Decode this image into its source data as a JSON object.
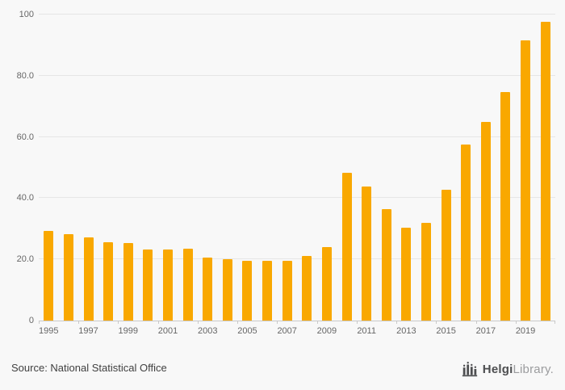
{
  "chart_data": {
    "type": "bar",
    "x": [
      1995,
      1996,
      1997,
      1998,
      1999,
      2000,
      2001,
      2002,
      2003,
      2004,
      2005,
      2006,
      2007,
      2008,
      2009,
      2010,
      2011,
      2012,
      2013,
      2014,
      2015,
      2016,
      2017,
      2018,
      2019,
      2020
    ],
    "values": [
      29.2,
      28.3,
      27.3,
      25.5,
      25.4,
      23.2,
      23.2,
      23.5,
      20.6,
      20.1,
      19.5,
      19.4,
      19.6,
      21.1,
      24.1,
      48.2,
      43.8,
      36.4,
      30.4,
      31.9,
      42.8,
      57.5,
      64.9,
      74.6,
      91.6,
      97.5
    ],
    "title": "",
    "xlabel": "",
    "ylabel": "",
    "ylim": [
      0,
      100
    ],
    "ytick_values": [
      0,
      20,
      40,
      60,
      80,
      100
    ],
    "ytick_labels": [
      "0",
      "20.0",
      "40.0",
      "60.0",
      "80.0",
      "100"
    ],
    "xtick_labels": [
      "1995",
      "1997",
      "1999",
      "2001",
      "2003",
      "2005",
      "2007",
      "2009",
      "2011",
      "2013",
      "2015",
      "2017",
      "2019"
    ],
    "grid": true,
    "legend": "none",
    "colors": {
      "bar": "#F9A800",
      "background": "#f8f8f8",
      "gridline": "#e6e6e6",
      "axis": "#c9c9c9",
      "tick_text": "#666666"
    }
  },
  "footer": {
    "source": "Source: National Statistical Office",
    "logo": {
      "name": "HelgiLibrary",
      "text_primary": "Helgi",
      "text_secondary": "Library",
      "suffix": "."
    }
  }
}
